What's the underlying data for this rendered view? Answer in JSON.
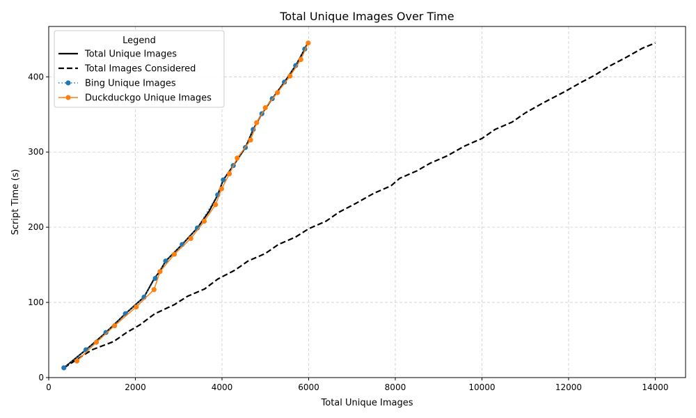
{
  "chart_data": {
    "type": "line",
    "title": "Total Unique Images Over Time",
    "xlabel": "Total Unique Images",
    "ylabel": "Script Time (s)",
    "xlim": [
      0,
      14700
    ],
    "ylim": [
      0,
      467
    ],
    "xticks": [
      0,
      2000,
      4000,
      6000,
      8000,
      10000,
      12000,
      14000
    ],
    "yticks": [
      0,
      100,
      200,
      300,
      400
    ],
    "grid": true,
    "legend": {
      "title": "Legend",
      "position": "top-left"
    },
    "series": [
      {
        "name": "Total Unique Images",
        "style": "solid",
        "color": "#000000",
        "marker": "none",
        "points": [
          [
            350,
            13
          ],
          [
            860,
            37
          ],
          [
            1320,
            60
          ],
          [
            1770,
            85
          ],
          [
            2200,
            107
          ],
          [
            2440,
            132
          ],
          [
            2560,
            141
          ],
          [
            2700,
            155
          ],
          [
            3080,
            177
          ],
          [
            3430,
            199
          ],
          [
            3700,
            221
          ],
          [
            3900,
            243
          ],
          [
            4030,
            263
          ],
          [
            4260,
            282
          ],
          [
            4540,
            306
          ],
          [
            4720,
            330
          ],
          [
            4920,
            351
          ],
          [
            5160,
            371
          ],
          [
            5440,
            393
          ],
          [
            5700,
            415
          ],
          [
            5910,
            437
          ],
          [
            5980,
            445
          ]
        ]
      },
      {
        "name": "Total Images Considered",
        "style": "dashed",
        "color": "#000000",
        "marker": "none",
        "points": [
          [
            350,
            13
          ],
          [
            1000,
            37
          ],
          [
            1500,
            48
          ],
          [
            1800,
            60
          ],
          [
            2100,
            70
          ],
          [
            2450,
            85
          ],
          [
            2900,
            97
          ],
          [
            3200,
            108
          ],
          [
            3600,
            118
          ],
          [
            3900,
            131
          ],
          [
            4300,
            143
          ],
          [
            4600,
            155
          ],
          [
            5000,
            165
          ],
          [
            5300,
            177
          ],
          [
            5700,
            187
          ],
          [
            6000,
            198
          ],
          [
            6400,
            208
          ],
          [
            6700,
            220
          ],
          [
            7100,
            232
          ],
          [
            7500,
            245
          ],
          [
            7900,
            255
          ],
          [
            8100,
            265
          ],
          [
            8500,
            275
          ],
          [
            8800,
            285
          ],
          [
            9200,
            295
          ],
          [
            9600,
            308
          ],
          [
            10000,
            318
          ],
          [
            10300,
            330
          ],
          [
            10700,
            340
          ],
          [
            11000,
            352
          ],
          [
            11400,
            365
          ],
          [
            11900,
            380
          ],
          [
            12300,
            393
          ],
          [
            12600,
            402
          ],
          [
            12900,
            413
          ],
          [
            13300,
            425
          ],
          [
            13700,
            438
          ],
          [
            14000,
            445
          ]
        ]
      },
      {
        "name": "Bing Unique Images",
        "style": "dotted",
        "color": "#1f77b4",
        "marker": "circle",
        "points": [
          [
            350,
            13
          ],
          [
            860,
            37
          ],
          [
            1320,
            60
          ],
          [
            1770,
            85
          ],
          [
            2200,
            107
          ],
          [
            2460,
            132
          ],
          [
            2700,
            155
          ],
          [
            3080,
            177
          ],
          [
            3430,
            199
          ],
          [
            3900,
            243
          ],
          [
            4030,
            263
          ],
          [
            4260,
            282
          ],
          [
            4540,
            306
          ],
          [
            4720,
            330
          ],
          [
            4920,
            351
          ],
          [
            5160,
            371
          ],
          [
            5440,
            393
          ],
          [
            5700,
            415
          ],
          [
            5910,
            437
          ]
        ]
      },
      {
        "name": "Duckduckgo Unique Images",
        "style": "solid",
        "color": "#ff7f0e",
        "marker": "circle",
        "points": [
          [
            650,
            22
          ],
          [
            1100,
            47
          ],
          [
            1520,
            69
          ],
          [
            2020,
            94
          ],
          [
            2430,
            117
          ],
          [
            2570,
            141
          ],
          [
            2900,
            164
          ],
          [
            3280,
            185
          ],
          [
            3590,
            208
          ],
          [
            3850,
            230
          ],
          [
            3990,
            251
          ],
          [
            4170,
            271
          ],
          [
            4350,
            292
          ],
          [
            4660,
            316
          ],
          [
            4800,
            339
          ],
          [
            5000,
            359
          ],
          [
            5280,
            379
          ],
          [
            5570,
            401
          ],
          [
            5820,
            423
          ],
          [
            5990,
            445
          ]
        ]
      }
    ]
  }
}
